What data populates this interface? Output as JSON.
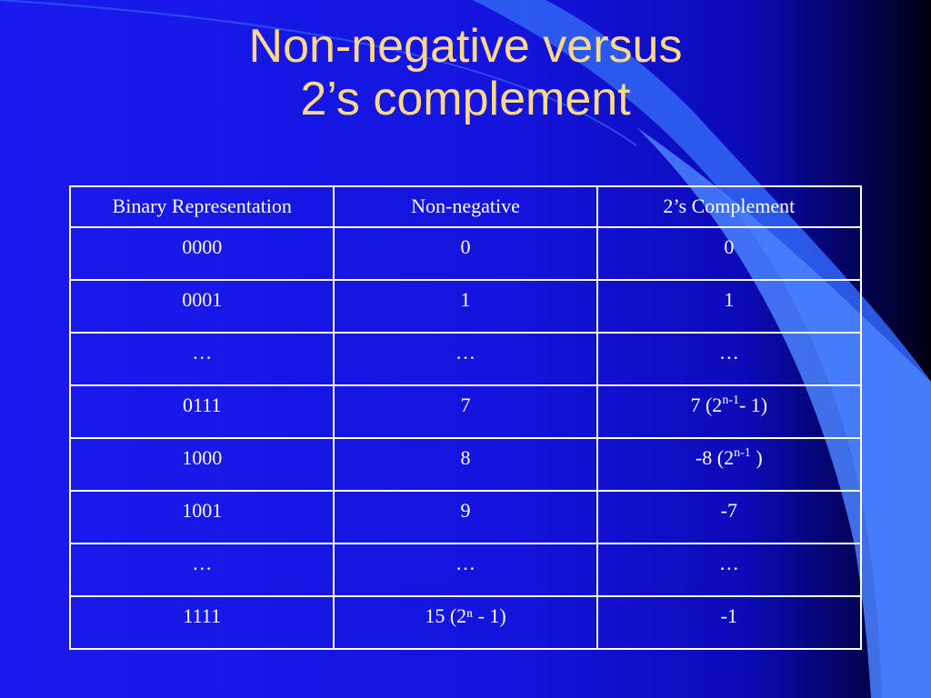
{
  "slide": {
    "title_line1": "Non-negative versus",
    "title_line2": "2’s complement",
    "colors": {
      "background": "#1a1aee",
      "title": "#ffd98a",
      "table_text": "#ffffff",
      "swoosh": "#3a6cf6"
    }
  },
  "table": {
    "headers": [
      "Binary Representation",
      "Non-negative",
      "2’s Complement"
    ],
    "rows": [
      {
        "binary": "0000",
        "nonneg": "0",
        "twos": "0"
      },
      {
        "binary": "0001",
        "nonneg": "1",
        "twos": "1"
      },
      {
        "binary": "…",
        "nonneg": "…",
        "twos": "…"
      },
      {
        "binary": "0111",
        "nonneg": "7",
        "twos_pre": "7 (2",
        "twos_sup": "n-1",
        "twos_post": "- 1)"
      },
      {
        "binary": "1000",
        "nonneg": "8",
        "twos_pre": "-8 (2",
        "twos_sup": "n-1",
        "twos_post": " )"
      },
      {
        "binary": "1001",
        "nonneg": "9",
        "twos": "-7"
      },
      {
        "binary": "…",
        "nonneg": "…",
        "twos": "…"
      },
      {
        "binary": "1111",
        "nonneg": "15 (2ⁿ - 1)",
        "twos": "-1"
      }
    ]
  }
}
